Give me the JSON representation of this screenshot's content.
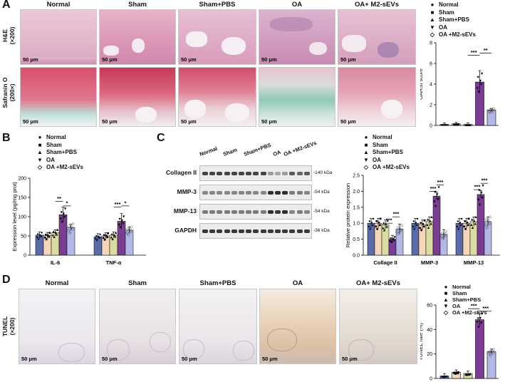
{
  "panels": {
    "A": "A",
    "B": "B",
    "C": "C",
    "D": "D"
  },
  "groups": [
    "Normal",
    "Sham",
    "Sham+PBS",
    "OA",
    "OA+ M2-sEVs"
  ],
  "legend_items": [
    "Normal",
    "Sham",
    "Sham+PBS",
    "OA",
    "OA +M2-sEVs"
  ],
  "colors": {
    "normal": "#5b6aa8",
    "sham": "#f6d6b8",
    "sham_pbs": "#d9dea0",
    "oa": "#7a3d91",
    "oa_m2": "#b3b9e6"
  },
  "panelA": {
    "row_labels": [
      {
        "line1": "H&E",
        "line2": "(×200)"
      },
      {
        "line1": "Safranin O",
        "line2": "(200×)"
      }
    ],
    "scale": "50 μm"
  },
  "panelB": {
    "ylabel": "Expression level (pg/mg prot)"
  },
  "panelC": {
    "group_labels": [
      "Normal",
      "Sham",
      "Sham+PBS",
      "OA",
      "OA +M2-sEVs"
    ],
    "blots": [
      {
        "name": "Collagen II",
        "kda": "140 kDa"
      },
      {
        "name": "MMP-3",
        "kda": "54 kDa"
      },
      {
        "name": "MMP-13",
        "kda": "54 kDa"
      },
      {
        "name": "GAPDH",
        "kda": "36 kDa"
      }
    ]
  },
  "panelD": {
    "row_label": {
      "line1": "TUNEL",
      "line2": "(×200)"
    },
    "scale": "50 μm"
  },
  "chart_data": [
    {
      "type": "bar",
      "id": "oarsi",
      "ylabel": "OARSI score",
      "categories": [
        "Normal",
        "Sham",
        "Sham+PBS",
        "OA",
        "OA +M2-sEVs"
      ],
      "values": [
        0.1,
        0.15,
        0.1,
        4.2,
        1.5
      ],
      "ylim": [
        0,
        8
      ],
      "yticks": [
        0,
        2,
        4,
        6,
        8
      ],
      "significance": [
        {
          "label": "***",
          "from": 2,
          "to": 3
        },
        {
          "label": "**",
          "from": 3,
          "to": 4
        }
      ]
    },
    {
      "type": "bar",
      "id": "cytokines",
      "ylabel": "Expression level (pg/mg prot)",
      "categories": [
        "IL-6",
        "TNF-α"
      ],
      "series": [
        {
          "name": "Normal",
          "values": [
            52,
            48
          ]
        },
        {
          "name": "Sham",
          "values": [
            51,
            50
          ]
        },
        {
          "name": "Sham+PBS",
          "values": [
            58,
            52
          ]
        },
        {
          "name": "OA",
          "values": [
            105,
            88
          ]
        },
        {
          "name": "OA +M2-sEVs",
          "values": [
            72,
            65
          ]
        }
      ],
      "ylim": [
        0,
        200
      ],
      "yticks": [
        0,
        50,
        100,
        150,
        200
      ],
      "significance": [
        {
          "label": "**",
          "category": 0
        },
        {
          "label": "*",
          "category": 0
        },
        {
          "label": "***",
          "category": 1
        },
        {
          "label": "*",
          "category": 1
        }
      ]
    },
    {
      "type": "bar",
      "id": "protein",
      "ylabel": "Relative protein expression",
      "categories": [
        "Collage II",
        "MMP-3",
        "MMP-13"
      ],
      "series": [
        {
          "name": "Normal",
          "values": [
            1.0,
            1.0,
            1.0
          ]
        },
        {
          "name": "Sham",
          "values": [
            1.0,
            0.95,
            1.0
          ]
        },
        {
          "name": "Sham+PBS",
          "values": [
            0.95,
            1.05,
            1.05
          ]
        },
        {
          "name": "OA",
          "values": [
            0.5,
            1.85,
            1.9
          ]
        },
        {
          "name": "OA +M2-sEVs",
          "values": [
            0.82,
            0.65,
            1.05
          ]
        }
      ],
      "ylim": [
        0,
        2.5
      ],
      "yticks": [
        0.0,
        0.5,
        1.0,
        1.5,
        2.0,
        2.5
      ],
      "significance": [
        {
          "label": "***",
          "category": 0
        },
        {
          "label": "***",
          "category": 0
        },
        {
          "label": "***",
          "category": 1
        },
        {
          "label": "***",
          "category": 1
        },
        {
          "label": "***",
          "category": 2
        },
        {
          "label": "***",
          "category": 2
        }
      ]
    },
    {
      "type": "bar",
      "id": "tunel",
      "ylabel": "TUNEL rate (%)",
      "categories": [
        "Normal",
        "Sham",
        "Sham+PBS",
        "OA",
        "OA +M2-sEVs"
      ],
      "values": [
        2,
        5,
        4,
        48,
        22
      ],
      "ylim": [
        0,
        60
      ],
      "yticks": [
        0,
        20,
        40,
        60
      ],
      "significance": [
        {
          "label": "***",
          "from": 2,
          "to": 3
        },
        {
          "label": "***",
          "from": 3,
          "to": 4
        }
      ]
    }
  ]
}
